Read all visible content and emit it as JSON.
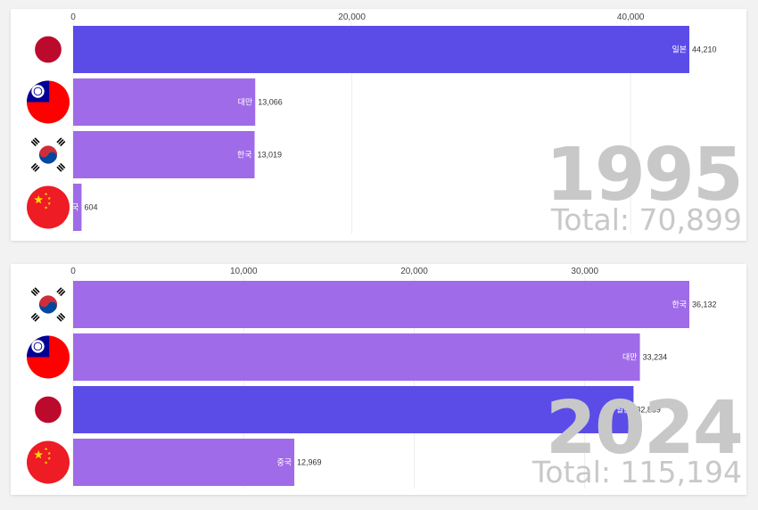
{
  "chart_data": [
    {
      "type": "bar",
      "orientation": "horizontal",
      "year_label": "1995",
      "total_label": "Total: 70,899",
      "xlim": [
        0,
        44210
      ],
      "x_ticks": [
        0,
        20000,
        40000
      ],
      "x_tick_labels": [
        "0",
        "20,000",
        "40,000"
      ],
      "bars": [
        {
          "name": "일본",
          "value": 44210,
          "value_label": "44,210",
          "color": "#5b4ce8",
          "flag": "japan-flag-icon"
        },
        {
          "name": "대만",
          "value": 13066,
          "value_label": "13,066",
          "color": "#a06be8",
          "flag": "taiwan-flag-icon"
        },
        {
          "name": "한국",
          "value": 13019,
          "value_label": "13,019",
          "color": "#a06be8",
          "flag": "korea-flag-icon"
        },
        {
          "name": "중국",
          "value": 604,
          "value_label": "604",
          "color": "#a06be8",
          "flag": "china-flag-icon"
        }
      ]
    },
    {
      "type": "bar",
      "orientation": "horizontal",
      "year_label": "2024",
      "total_label": "Total: 115,194",
      "xlim": [
        0,
        36132
      ],
      "x_ticks": [
        0,
        10000,
        20000,
        30000
      ],
      "x_tick_labels": [
        "0",
        "10,000",
        "20,000",
        "30,000"
      ],
      "bars": [
        {
          "name": "한국",
          "value": 36132,
          "value_label": "36,132",
          "color": "#a06be8",
          "flag": "korea-flag-icon"
        },
        {
          "name": "대만",
          "value": 33234,
          "value_label": "33,234",
          "color": "#a06be8",
          "flag": "taiwan-flag-icon"
        },
        {
          "name": "일본",
          "value": 32859,
          "value_label": "32,859",
          "color": "#5b4ce8",
          "flag": "japan-flag-icon"
        },
        {
          "name": "중국",
          "value": 12969,
          "value_label": "12,969",
          "color": "#a06be8",
          "flag": "china-flag-icon"
        }
      ]
    }
  ]
}
